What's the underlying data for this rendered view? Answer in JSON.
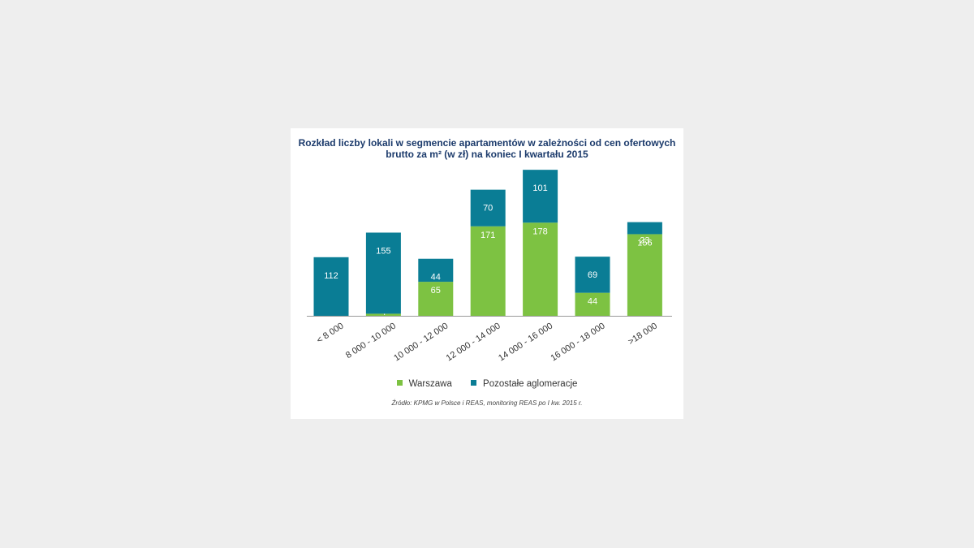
{
  "chart_data": {
    "type": "bar",
    "stacked": true,
    "title_line1": "Rozkład liczby lokali w segmencie apartamentów w zależności od cen ofertowych",
    "title_line2": "brutto za m² (w zł) na koniec I kwartału 2015",
    "categories": [
      "< 8 000",
      "8 000 - 10 000",
      "10 000 - 12 000",
      "12 000 - 14 000",
      "14 000 - 16 000",
      "16 000 - 18 000",
      ">18 000"
    ],
    "series": [
      {
        "name": "Warszawa",
        "color": "#7dc242",
        "values": [
          0,
          4,
          65,
          171,
          178,
          44,
          156
        ]
      },
      {
        "name": "Pozostałe aglomeracje",
        "color": "#0a7d95",
        "values": [
          112,
          155,
          44,
          70,
          101,
          69,
          23
        ]
      }
    ],
    "ylim": [
      0,
      280
    ],
    "grid": false,
    "legend_position": "bottom",
    "source": "Źródło: KPMG w Polsce i REAS, monitoring REAS po I kw. 2015 r."
  }
}
